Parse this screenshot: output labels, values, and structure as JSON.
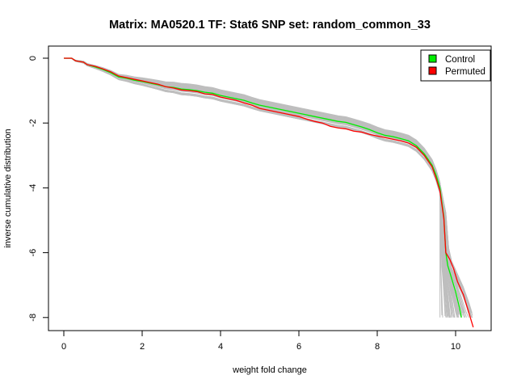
{
  "chart_data": {
    "type": "line",
    "title": "Matrix: MA0520.1 TF: Stat6 SNP set: random_common_33",
    "xlabel": "weight fold change",
    "ylabel": "inverse cumulative distribution",
    "xlim": [
      0,
      10.5
    ],
    "ylim": [
      -8,
      0
    ],
    "x_ticks": [
      0,
      2,
      4,
      6,
      8,
      10
    ],
    "y_ticks": [
      0,
      -2,
      -4,
      -6,
      -8
    ],
    "grid": false,
    "legend_position": "top-right",
    "legend": [
      {
        "label": "Control",
        "color": "#00ee00"
      },
      {
        "label": "Permuted",
        "color": "#ff0000"
      }
    ],
    "background_color": "#bebebe",
    "series": [
      {
        "name": "Control",
        "color": "#00ee00",
        "points": [
          [
            0.0,
            0.0
          ],
          [
            0.2,
            0.0
          ],
          [
            0.3,
            -0.08
          ],
          [
            0.5,
            -0.12
          ],
          [
            0.6,
            -0.2
          ],
          [
            0.8,
            -0.27
          ],
          [
            1.0,
            -0.35
          ],
          [
            1.2,
            -0.45
          ],
          [
            1.4,
            -0.58
          ],
          [
            1.6,
            -0.62
          ],
          [
            1.8,
            -0.68
          ],
          [
            2.0,
            -0.72
          ],
          [
            2.2,
            -0.77
          ],
          [
            2.4,
            -0.82
          ],
          [
            2.6,
            -0.88
          ],
          [
            2.8,
            -0.9
          ],
          [
            3.0,
            -0.95
          ],
          [
            3.2,
            -0.97
          ],
          [
            3.4,
            -1.0
          ],
          [
            3.6,
            -1.05
          ],
          [
            3.8,
            -1.08
          ],
          [
            4.0,
            -1.15
          ],
          [
            4.2,
            -1.2
          ],
          [
            4.4,
            -1.25
          ],
          [
            4.6,
            -1.3
          ],
          [
            4.8,
            -1.38
          ],
          [
            5.0,
            -1.45
          ],
          [
            5.2,
            -1.5
          ],
          [
            5.4,
            -1.55
          ],
          [
            5.6,
            -1.6
          ],
          [
            5.8,
            -1.65
          ],
          [
            6.0,
            -1.7
          ],
          [
            6.2,
            -1.75
          ],
          [
            6.4,
            -1.8
          ],
          [
            6.6,
            -1.85
          ],
          [
            6.8,
            -1.9
          ],
          [
            7.0,
            -1.95
          ],
          [
            7.2,
            -1.98
          ],
          [
            7.4,
            -2.05
          ],
          [
            7.6,
            -2.12
          ],
          [
            7.8,
            -2.2
          ],
          [
            8.0,
            -2.3
          ],
          [
            8.2,
            -2.38
          ],
          [
            8.4,
            -2.42
          ],
          [
            8.6,
            -2.48
          ],
          [
            8.8,
            -2.55
          ],
          [
            9.0,
            -2.7
          ],
          [
            9.2,
            -2.95
          ],
          [
            9.4,
            -3.3
          ],
          [
            9.5,
            -3.6
          ],
          [
            9.6,
            -4.0
          ],
          [
            9.7,
            -4.9
          ],
          [
            9.75,
            -6.0
          ],
          [
            9.8,
            -6.4
          ],
          [
            9.9,
            -6.8
          ],
          [
            10.0,
            -7.2
          ],
          [
            10.1,
            -7.7
          ],
          [
            10.15,
            -8.0
          ]
        ]
      },
      {
        "name": "Permuted",
        "color": "#ff0000",
        "points": [
          [
            0.0,
            0.0
          ],
          [
            0.2,
            0.0
          ],
          [
            0.3,
            -0.08
          ],
          [
            0.5,
            -0.12
          ],
          [
            0.6,
            -0.2
          ],
          [
            0.8,
            -0.25
          ],
          [
            1.0,
            -0.33
          ],
          [
            1.2,
            -0.42
          ],
          [
            1.4,
            -0.55
          ],
          [
            1.6,
            -0.6
          ],
          [
            1.8,
            -0.65
          ],
          [
            2.0,
            -0.7
          ],
          [
            2.2,
            -0.75
          ],
          [
            2.4,
            -0.8
          ],
          [
            2.6,
            -0.88
          ],
          [
            2.8,
            -0.92
          ],
          [
            3.0,
            -0.98
          ],
          [
            3.2,
            -1.0
          ],
          [
            3.4,
            -1.03
          ],
          [
            3.6,
            -1.1
          ],
          [
            3.8,
            -1.12
          ],
          [
            4.0,
            -1.2
          ],
          [
            4.2,
            -1.25
          ],
          [
            4.4,
            -1.3
          ],
          [
            4.6,
            -1.38
          ],
          [
            4.8,
            -1.45
          ],
          [
            5.0,
            -1.55
          ],
          [
            5.2,
            -1.6
          ],
          [
            5.4,
            -1.65
          ],
          [
            5.6,
            -1.7
          ],
          [
            5.8,
            -1.75
          ],
          [
            6.0,
            -1.8
          ],
          [
            6.2,
            -1.88
          ],
          [
            6.4,
            -1.95
          ],
          [
            6.6,
            -2.0
          ],
          [
            6.8,
            -2.1
          ],
          [
            7.0,
            -2.15
          ],
          [
            7.2,
            -2.18
          ],
          [
            7.4,
            -2.25
          ],
          [
            7.6,
            -2.28
          ],
          [
            7.8,
            -2.35
          ],
          [
            8.0,
            -2.4
          ],
          [
            8.2,
            -2.45
          ],
          [
            8.4,
            -2.5
          ],
          [
            8.6,
            -2.55
          ],
          [
            8.8,
            -2.62
          ],
          [
            9.0,
            -2.75
          ],
          [
            9.2,
            -3.0
          ],
          [
            9.4,
            -3.35
          ],
          [
            9.5,
            -3.7
          ],
          [
            9.6,
            -4.1
          ],
          [
            9.7,
            -4.95
          ],
          [
            9.75,
            -6.0
          ],
          [
            9.85,
            -6.2
          ],
          [
            9.95,
            -6.5
          ],
          [
            10.05,
            -6.9
          ],
          [
            10.2,
            -7.3
          ],
          [
            10.3,
            -7.7
          ],
          [
            10.45,
            -8.3
          ]
        ]
      }
    ]
  }
}
